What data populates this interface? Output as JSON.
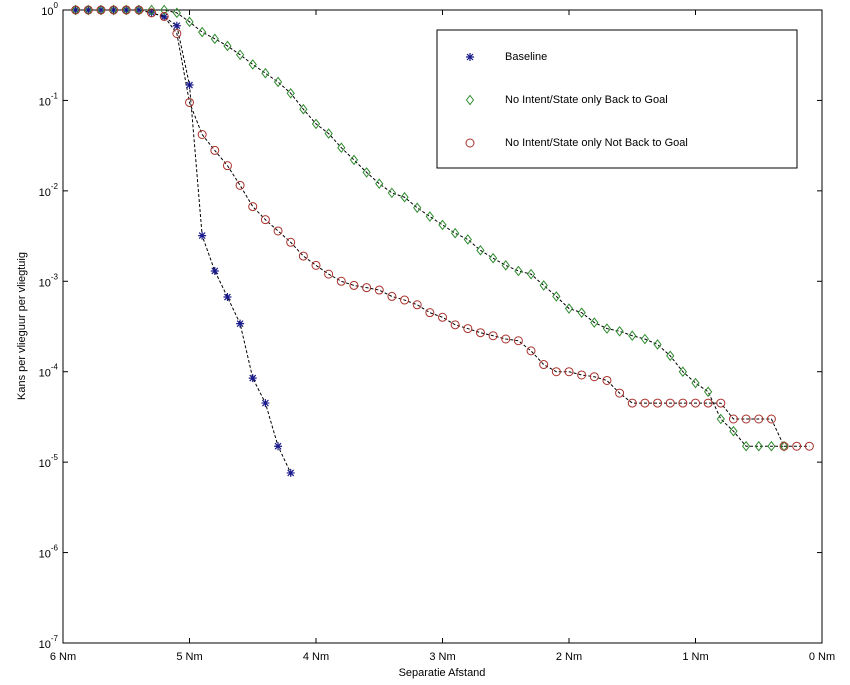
{
  "chart_data": {
    "type": "line",
    "x_label": "Separatie Afstand",
    "y_label": "Kans per vlieguur per vliegtuig",
    "xlim": [
      6,
      0
    ],
    "xticks": [
      {
        "value": 6,
        "label": "6 Nm"
      },
      {
        "value": 5,
        "label": "5 Nm"
      },
      {
        "value": 4,
        "label": "4 Nm"
      },
      {
        "value": 3,
        "label": "3 Nm"
      },
      {
        "value": 2,
        "label": "2 Nm"
      },
      {
        "value": 1,
        "label": "1 Nm"
      },
      {
        "value": 0,
        "label": "0 Nm"
      }
    ],
    "ylim": [
      1e-07,
      1
    ],
    "yscale": "log",
    "yticks": [
      {
        "value": 1e-07,
        "label": "10^-7"
      },
      {
        "value": 1e-06,
        "label": "10^-6"
      },
      {
        "value": 1e-05,
        "label": "10^-5"
      },
      {
        "value": 0.0001,
        "label": "10^-4"
      },
      {
        "value": 0.001,
        "label": "10^-3"
      },
      {
        "value": 0.01,
        "label": "10^-2"
      },
      {
        "value": 0.1,
        "label": "10^-1"
      },
      {
        "value": 1,
        "label": "10^0"
      }
    ],
    "legend": "upper right",
    "series": [
      {
        "name": "Baseline",
        "color": "#1a1a8c",
        "marker": "star",
        "x": [
          5.9,
          5.8,
          5.7,
          5.6,
          5.5,
          5.4,
          5.3,
          5.2,
          5.1,
          5.0,
          4.9,
          4.8,
          4.7,
          4.6,
          4.5,
          4.4,
          4.3,
          4.2
        ],
        "values": [
          1,
          1,
          1,
          1,
          1,
          1,
          0.93,
          0.84,
          0.67,
          0.148,
          0.0032,
          0.0013,
          0.00067,
          0.00034,
          8.5e-05,
          4.5e-05,
          1.5e-05,
          7.6e-06
        ]
      },
      {
        "name": "No Intent/State only Back to Goal",
        "color": "#2e8b2e",
        "marker": "diamond",
        "x": [
          5.9,
          5.8,
          5.7,
          5.6,
          5.5,
          5.4,
          5.3,
          5.2,
          5.1,
          5.0,
          4.9,
          4.8,
          4.7,
          4.6,
          4.5,
          4.4,
          4.3,
          4.2,
          4.1,
          4.0,
          3.9,
          3.8,
          3.7,
          3.6,
          3.5,
          3.4,
          3.3,
          3.2,
          3.1,
          3.0,
          2.9,
          2.8,
          2.7,
          2.6,
          2.5,
          2.4,
          2.3,
          2.2,
          2.1,
          2.0,
          1.9,
          1.8,
          1.7,
          1.6,
          1.5,
          1.4,
          1.3,
          1.2,
          1.1,
          1.0,
          0.9,
          0.8,
          0.7,
          0.6,
          0.5,
          0.4,
          0.3
        ],
        "values": [
          1,
          1,
          1,
          1,
          1,
          1,
          1,
          1,
          0.93,
          0.74,
          0.57,
          0.48,
          0.4,
          0.32,
          0.25,
          0.2,
          0.16,
          0.12,
          0.08,
          0.055,
          0.043,
          0.03,
          0.022,
          0.016,
          0.012,
          0.0095,
          0.0085,
          0.0065,
          0.0052,
          0.0042,
          0.0034,
          0.0029,
          0.0022,
          0.0018,
          0.0015,
          0.0013,
          0.0012,
          0.0009,
          0.00068,
          0.0005,
          0.00045,
          0.00035,
          0.0003,
          0.00028,
          0.00025,
          0.00023,
          0.0002,
          0.00015,
          0.0001,
          7.5e-05,
          6e-05,
          3e-05,
          2.2e-05,
          1.5e-05,
          1.5e-05,
          1.5e-05,
          1.5e-05
        ]
      },
      {
        "name": "No Intent/State only Not Back to Goal",
        "color": "#a8302a",
        "marker": "circle",
        "x": [
          5.9,
          5.8,
          5.7,
          5.6,
          5.5,
          5.4,
          5.3,
          5.2,
          5.1,
          5.0,
          4.9,
          4.8,
          4.7,
          4.6,
          4.5,
          4.4,
          4.3,
          4.2,
          4.1,
          4.0,
          3.9,
          3.8,
          3.7,
          3.6,
          3.5,
          3.4,
          3.3,
          3.2,
          3.1,
          3.0,
          2.9,
          2.8,
          2.7,
          2.6,
          2.5,
          2.4,
          2.3,
          2.2,
          2.1,
          2.0,
          1.9,
          1.8,
          1.7,
          1.6,
          1.5,
          1.4,
          1.3,
          1.2,
          1.1,
          1.0,
          0.9,
          0.8,
          0.7,
          0.6,
          0.5,
          0.4,
          0.3,
          0.2,
          0.1
        ],
        "values": [
          1,
          1,
          1,
          1,
          1,
          1,
          0.93,
          0.85,
          0.55,
          0.095,
          0.042,
          0.028,
          0.019,
          0.0115,
          0.0067,
          0.0048,
          0.0036,
          0.0027,
          0.0019,
          0.0015,
          0.0012,
          0.001,
          0.0009,
          0.00085,
          0.0008,
          0.00068,
          0.00062,
          0.00055,
          0.00045,
          0.0004,
          0.00033,
          0.0003,
          0.00027,
          0.00025,
          0.00023,
          0.00022,
          0.00017,
          0.00012,
          0.0001,
          0.0001,
          9.2e-05,
          8.8e-05,
          8e-05,
          5.8e-05,
          4.5e-05,
          4.5e-05,
          4.5e-05,
          4.5e-05,
          4.5e-05,
          4.5e-05,
          4.5e-05,
          4.5e-05,
          3e-05,
          3e-05,
          3e-05,
          3e-05,
          1.5e-05,
          1.5e-05,
          1.5e-05
        ]
      }
    ]
  }
}
